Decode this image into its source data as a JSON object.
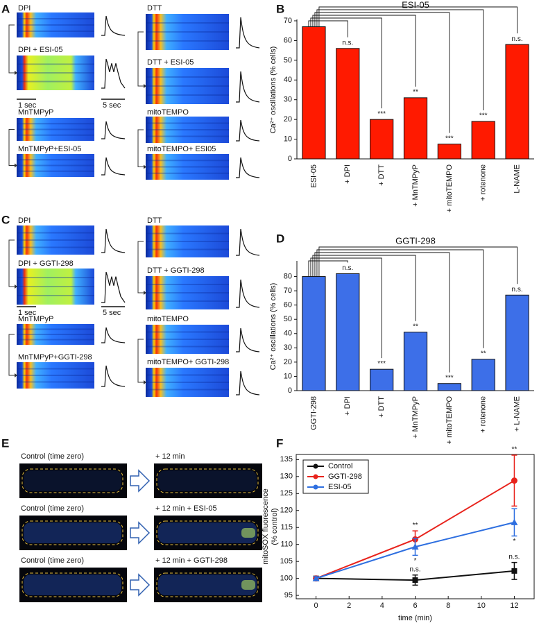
{
  "panels": {
    "letters": [
      "A",
      "B",
      "C",
      "D",
      "E",
      "F"
    ],
    "A": {
      "images": [
        "DPI",
        "DPI + ESI-05",
        "MnTMPyP",
        "MnTMPyP+ESI-05",
        "DTT",
        "DTT + ESI-05",
        "mitoTEMPO",
        "mitoTEMPO+ ESI05"
      ],
      "scale_bars": [
        "1 sec",
        "5 sec"
      ]
    },
    "C": {
      "images": [
        "DPI",
        "DPI + GGTI-298",
        "MnTMPyP",
        "MnTMPyP+GGTI-298",
        "DTT",
        "DTT + GGTI-298",
        "mitoTEMPO",
        "mitoTEMPO+ GGTI-298"
      ],
      "scale_bars": [
        "1 sec",
        "5 sec"
      ]
    },
    "E": {
      "left": [
        "Control (time zero)",
        "Control (time zero)",
        "Control (time zero)"
      ],
      "right": [
        "+ 12 min",
        "+ 12 min + ESI-05",
        "+ 12 min + GGTI-298"
      ]
    }
  },
  "chart_data": [
    {
      "type": "bar",
      "title": "ESI-05",
      "y_label": "Ca²⁺ oscillations (% cells)",
      "categories": [
        "ESI-05",
        "+ DPI",
        "+ DTT",
        "+ MnTMPyP",
        "+ mitoTEMPO",
        "+ rotenone",
        "L-NAME"
      ],
      "values": [
        67,
        56,
        20,
        31,
        7.5,
        19,
        58
      ],
      "significance": [
        null,
        "n.s.",
        "***",
        "**",
        "***",
        "***",
        "n.s."
      ],
      "color": "#ff1a00",
      "ylim": [
        0,
        70
      ],
      "yticks": [
        0,
        10,
        20,
        30,
        40,
        50,
        60,
        70
      ]
    },
    {
      "type": "bar",
      "title": "GGTI-298",
      "y_label": "Ca²⁺ oscillations (% cells)",
      "categories": [
        "GGTI-298",
        "+ DPI",
        "+ DTT",
        "+ MnTMPyP",
        "+ mitoTEMPO",
        "+ rotenone",
        "+ L-NAME"
      ],
      "values": [
        80,
        82,
        15,
        41,
        5,
        22,
        67
      ],
      "significance": [
        null,
        "n.s.",
        "***",
        "**",
        "***",
        "**",
        "n.s."
      ],
      "color": "#3d6fe8",
      "ylim": [
        0,
        90
      ],
      "yticks": [
        0,
        10,
        20,
        30,
        40,
        50,
        60,
        70,
        80
      ]
    },
    {
      "type": "line",
      "x_label": "time (min)",
      "y_label": [
        "mitoSOX fluorescence",
        "(% control)"
      ],
      "x": [
        0,
        6,
        12
      ],
      "xlim": [
        -1.2,
        13.2
      ],
      "xticks": [
        0,
        2,
        4,
        6,
        8,
        10,
        12
      ],
      "ylim": [
        94,
        136.5
      ],
      "yticks": [
        95,
        100,
        105,
        110,
        115,
        120,
        125,
        130,
        135
      ],
      "legend": "upper left",
      "series": [
        {
          "name": "Control",
          "color": "#111111",
          "marker": "square",
          "values": [
            100,
            99.5,
            102.2
          ],
          "errors": [
            0.5,
            1.5,
            2.5
          ],
          "significance": [
            null,
            "n.s.",
            "n.s."
          ],
          "significance_position": "above"
        },
        {
          "name": "GGTI-298",
          "color": "#e8231c",
          "marker": "circle",
          "values": [
            100,
            111.5,
            128.8
          ],
          "errors": [
            0.5,
            2.5,
            7.5
          ],
          "significance": [
            null,
            "**",
            "**"
          ],
          "significance_position": "above"
        },
        {
          "name": "ESI-05",
          "color": "#2e6fe0",
          "marker": "triangle",
          "values": [
            100,
            109.3,
            116.5
          ],
          "errors": [
            0.5,
            2.5,
            4
          ],
          "significance": [
            null,
            "*",
            "*"
          ],
          "significance_position": "below"
        }
      ]
    }
  ]
}
